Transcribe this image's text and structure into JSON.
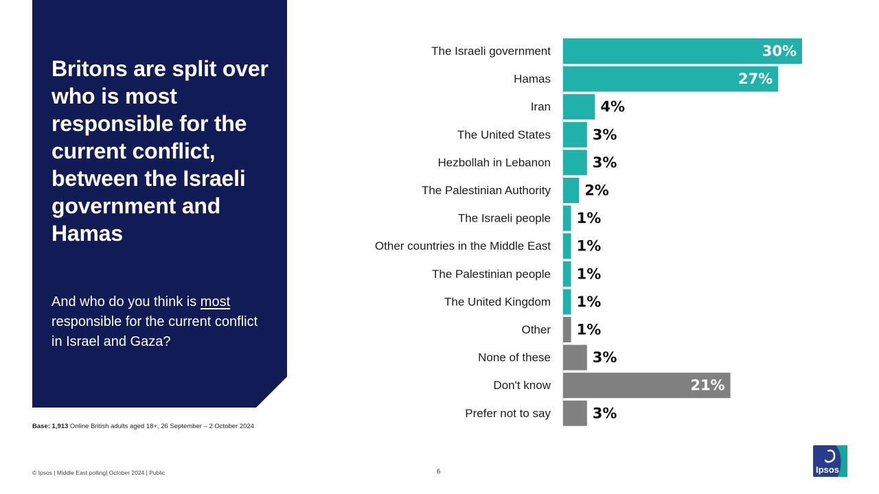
{
  "panel": {
    "title": "Britons are split over who is most responsible for the current conflict, between the Israeli government and Hamas",
    "question_pre": "And who do you think is ",
    "question_emph": "most",
    "question_post": " responsible for the current conflict in Israel and Gaza?"
  },
  "base": {
    "label": "Base:",
    "count": "1,913",
    "text": " Online British adults aged 18+, 26 September – 2 October 2024"
  },
  "footer": {
    "text": "© Ipsos | Middle East polling| October 2024 | Public",
    "page": "6"
  },
  "logo": {
    "text": "Ipsos",
    "color": "#2a3c8e",
    "accent": "#12a89b"
  },
  "colors": {
    "panel": "#111c56",
    "teal": "#20b2aa",
    "grey": "#808080",
    "value_inside": "#ffffff",
    "value_outside": "#111111"
  },
  "chart_data": {
    "type": "bar",
    "orientation": "horizontal",
    "value_suffix": "%",
    "xlim": [
      0,
      30
    ],
    "categories": [
      "The Israeli government",
      "Hamas",
      "Iran",
      "The United States",
      "Hezbollah in Lebanon",
      "The Palestinian Authority",
      "The Israeli people",
      "Other countries in the Middle East",
      "The Palestinian people",
      "The United Kingdom",
      "Other",
      "None of these",
      "Don't know",
      "Prefer not to say"
    ],
    "values": [
      30,
      27,
      4,
      3,
      3,
      2,
      1,
      1,
      1,
      1,
      1,
      3,
      21,
      3
    ],
    "bar_colors": [
      "teal",
      "teal",
      "teal",
      "teal",
      "teal",
      "teal",
      "teal",
      "teal",
      "teal",
      "teal",
      "grey",
      "grey",
      "grey",
      "grey"
    ]
  }
}
